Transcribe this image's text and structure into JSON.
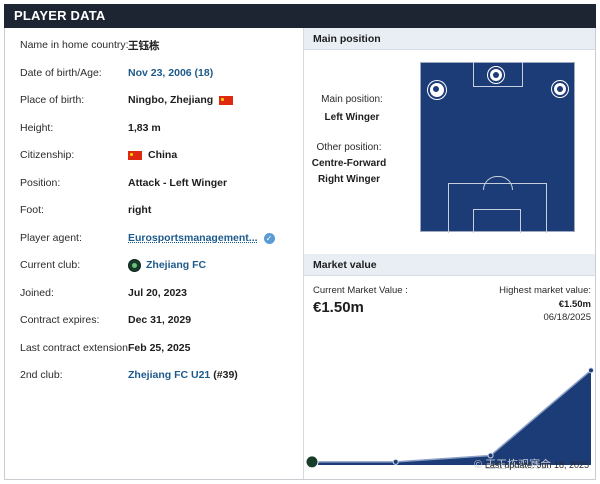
{
  "header": {
    "title": "PLAYER DATA"
  },
  "player": {
    "rows": [
      {
        "label": "Name in home country:",
        "value": "王钰栋"
      },
      {
        "label": "Date of birth/Age:",
        "value": "Nov 23, 2006 (18)"
      },
      {
        "label": "Place of birth:",
        "value": "Ningbo, Zhejiang"
      },
      {
        "label": "Height:",
        "value": "1,83 m"
      },
      {
        "label": "Citizenship:",
        "value": "China"
      },
      {
        "label": "Position:",
        "value": "Attack - Left Winger"
      },
      {
        "label": "Foot:",
        "value": "right"
      },
      {
        "label": "Player agent:",
        "value": "Eurosportsmanagement..."
      },
      {
        "label": "Current club:",
        "value": "Zhejiang FC"
      },
      {
        "label": "Joined:",
        "value": "Jul 20, 2023"
      },
      {
        "label": "Contract expires:",
        "value": "Dec 31, 2029"
      },
      {
        "label": "Last contract extension:",
        "value": "Feb 25, 2025"
      },
      {
        "label": "2nd club:",
        "value": "Zhejiang FC U21",
        "suffix": "(#39)"
      }
    ]
  },
  "position": {
    "heading": "Main position",
    "main_label": "Main position:",
    "main_value": "Left Winger",
    "other_label": "Other position:",
    "other_values": [
      "Centre-Forward",
      "Right Winger"
    ]
  },
  "market": {
    "heading": "Market value",
    "current_label": "Current Market Value :",
    "current_value": "€1.50m",
    "highest_label": "Highest market value:",
    "highest_value": "€1.50m",
    "highest_date": "06/18/2025",
    "last_update": "Last update: Jun 18, 2025",
    "watermark": "© 王玉栋观赛会"
  },
  "chart_data": {
    "type": "area",
    "series": [
      {
        "values": [
          0.05,
          0.05,
          0.15,
          1.5
        ]
      }
    ],
    "x_positions": [
      0,
      0.3,
      0.64,
      1.0
    ],
    "ylim": [
      0,
      1.6
    ],
    "color": "#1c3c78"
  },
  "colors": {
    "header_bg": "#1d2533",
    "link": "#1d5a8c",
    "pitch": "#1c3c78",
    "section_bg": "#e9eef5"
  }
}
